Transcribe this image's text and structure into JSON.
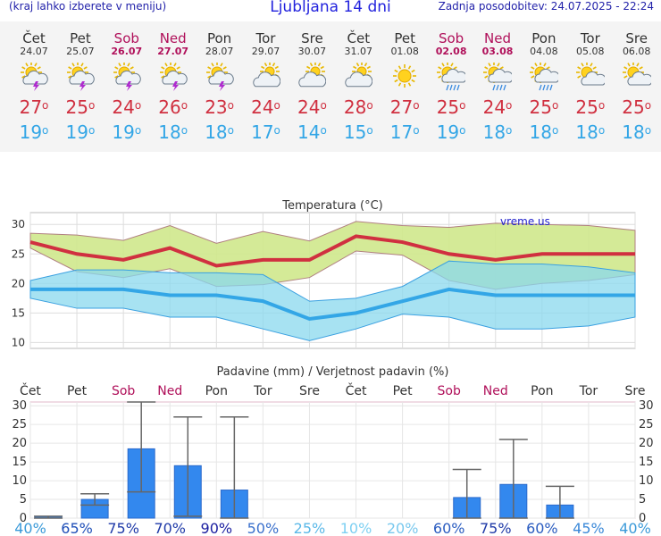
{
  "header": {
    "hint": "(kraj lahko izberete v meniju)",
    "title": "Ljubljana 14 dni",
    "updated": "Zadnja posodobitev: 24.07.2025 - 22:24"
  },
  "colors": {
    "weekday": "#333333",
    "weekend": "#b0105a",
    "tmax": "#d03040",
    "tmin": "#33a6e6",
    "bar": "#3388ee"
  },
  "days": [
    {
      "name": "Čet",
      "date": "24.07",
      "weekend": false,
      "icon": "sun-cloud-thunder-icon",
      "tmax": "27",
      "tmin": "19"
    },
    {
      "name": "Pet",
      "date": "25.07",
      "weekend": false,
      "icon": "sun-cloud-thunder-icon",
      "tmax": "25",
      "tmin": "19"
    },
    {
      "name": "Sob",
      "date": "26.07",
      "weekend": true,
      "icon": "sun-cloud-thunder-icon",
      "tmax": "24",
      "tmin": "19"
    },
    {
      "name": "Ned",
      "date": "27.07",
      "weekend": true,
      "icon": "sun-cloud-thunder-icon",
      "tmax": "26",
      "tmin": "18"
    },
    {
      "name": "Pon",
      "date": "28.07",
      "weekend": false,
      "icon": "sun-cloud-thunder-icon",
      "tmax": "23",
      "tmin": "18"
    },
    {
      "name": "Tor",
      "date": "29.07",
      "weekend": false,
      "icon": "cloud-sun-icon",
      "tmax": "24",
      "tmin": "17"
    },
    {
      "name": "Sre",
      "date": "30.07",
      "weekend": false,
      "icon": "cloud-sun-icon",
      "tmax": "24",
      "tmin": "14"
    },
    {
      "name": "Čet",
      "date": "31.07",
      "weekend": false,
      "icon": "cloud-sun-icon",
      "tmax": "28",
      "tmin": "15"
    },
    {
      "name": "Pet",
      "date": "01.08",
      "weekend": false,
      "icon": "sun-icon",
      "tmax": "27",
      "tmin": "17"
    },
    {
      "name": "Sob",
      "date": "02.08",
      "weekend": true,
      "icon": "sun-cloud-rain-icon",
      "tmax": "25",
      "tmin": "19"
    },
    {
      "name": "Ned",
      "date": "03.08",
      "weekend": true,
      "icon": "sun-cloud-rain-icon",
      "tmax": "24",
      "tmin": "18"
    },
    {
      "name": "Pon",
      "date": "04.08",
      "weekend": false,
      "icon": "sun-cloud-rain-icon",
      "tmax": "25",
      "tmin": "18"
    },
    {
      "name": "Tor",
      "date": "05.08",
      "weekend": false,
      "icon": "sun-cloud-icon",
      "tmax": "25",
      "tmin": "18"
    },
    {
      "name": "Sre",
      "date": "06.08",
      "weekend": false,
      "icon": "sun-cloud-icon",
      "tmax": "25",
      "tmin": "18"
    }
  ],
  "chart_data": [
    {
      "type": "line",
      "title": "Temperatura (°C)",
      "watermark": "vreme.us",
      "ylim": [
        9,
        32
      ],
      "yticks": [
        10,
        15,
        20,
        25,
        30
      ],
      "grid": true,
      "x": [
        "24.07",
        "25.07",
        "26.07",
        "27.07",
        "28.07",
        "29.07",
        "30.07",
        "31.07",
        "01.08",
        "02.08",
        "03.08",
        "04.08",
        "05.08",
        "06.08"
      ],
      "series": [
        {
          "kind": "line",
          "color": "#d03040",
          "values": [
            27,
            25,
            24,
            26,
            23,
            24,
            24,
            28,
            27,
            25,
            24,
            25,
            25,
            25
          ]
        },
        {
          "kind": "line",
          "color": "#33a6e6",
          "values": [
            19,
            19,
            19,
            18,
            18,
            17,
            14,
            15,
            17,
            19,
            18,
            18,
            18,
            18
          ]
        },
        {
          "kind": "band",
          "color": "#cfe88c",
          "upper": [
            28.5,
            28.2,
            27.3,
            29.8,
            26.8,
            28.8,
            27.2,
            30.5,
            29.8,
            29.5,
            30.2,
            30.0,
            29.8,
            29.0
          ],
          "lower": [
            26.0,
            22.0,
            21.0,
            22.5,
            19.5,
            19.8,
            21.0,
            25.5,
            24.8,
            20.5,
            19.0,
            20.0,
            20.5,
            21.5
          ]
        },
        {
          "kind": "band",
          "color": "#8ad8ee",
          "upper": [
            20.5,
            22.3,
            22.3,
            21.8,
            21.8,
            21.5,
            17.0,
            17.5,
            19.5,
            23.8,
            23.3,
            23.3,
            22.8,
            21.8
          ],
          "lower": [
            17.5,
            15.8,
            15.8,
            14.3,
            14.3,
            12.3,
            10.3,
            12.3,
            14.8,
            14.3,
            12.3,
            12.3,
            12.8,
            14.3
          ]
        }
      ]
    },
    {
      "type": "bar",
      "title": "Padavine (mm) / Verjetnost padavin (%)",
      "ylim": [
        0,
        31
      ],
      "yticks": [
        0,
        5,
        10,
        15,
        20,
        25,
        30
      ],
      "grid": true,
      "categories": [
        "Čet",
        "Pet",
        "Sob",
        "Ned",
        "Pon",
        "Tor",
        "Sre",
        "Čet",
        "Pet",
        "Sob",
        "Ned",
        "Pon",
        "Tor",
        "Sre"
      ],
      "values": [
        0.5,
        5,
        18.5,
        14,
        7.5,
        0,
        0,
        0,
        0,
        5.5,
        9,
        3.5,
        0,
        0
      ],
      "error_high": [
        0.5,
        6.5,
        31,
        27,
        27,
        0,
        0,
        0,
        0,
        13,
        21,
        8.5,
        0,
        0
      ],
      "error_low": [
        0,
        3.5,
        7,
        0.5,
        0,
        0,
        0,
        0,
        0,
        0,
        0,
        0,
        0,
        0
      ],
      "probability": [
        "40%",
        "65%",
        "75%",
        "70%",
        "90%",
        "50%",
        "25%",
        "10%",
        "20%",
        "60%",
        "75%",
        "60%",
        "45%",
        "40%"
      ],
      "probability_colors": [
        "#3a9ad9",
        "#1f4fb8",
        "#1f3aa8",
        "#1f3aa8",
        "#1a1ea0",
        "#3a70cc",
        "#5ab8e8",
        "#7dd0f2",
        "#78c8ee",
        "#2a5cc0",
        "#1f3aa8",
        "#2a5cc0",
        "#3a88d8",
        "#3a9ad9"
      ]
    }
  ]
}
